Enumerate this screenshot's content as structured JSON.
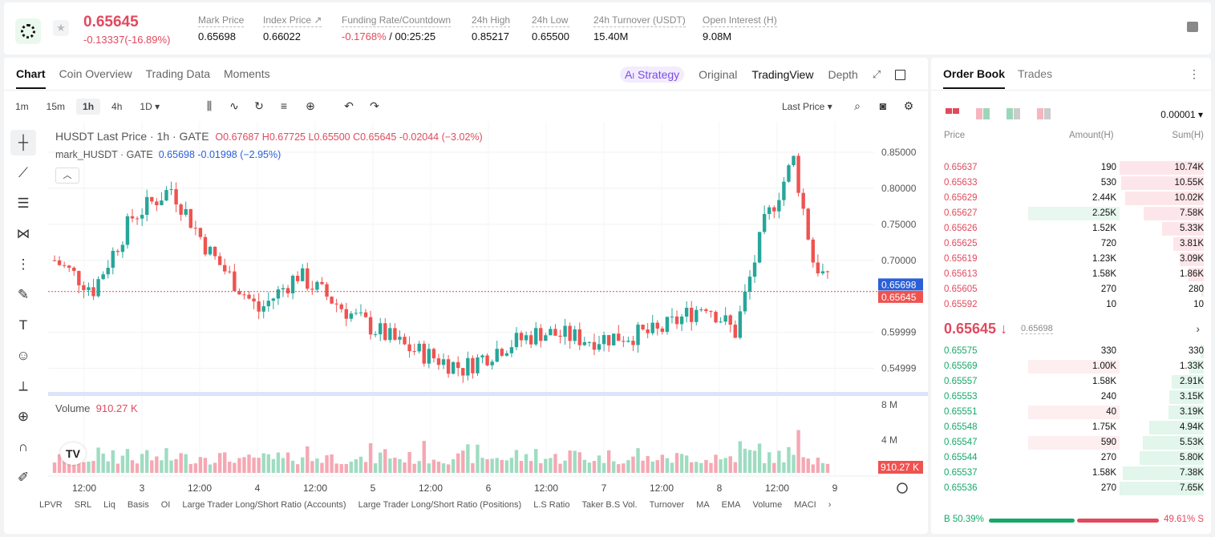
{
  "header": {
    "price": "0.65645",
    "change": "-0.13337(-16.89%)",
    "stats": [
      {
        "label": "Mark Price",
        "value": "0.65698"
      },
      {
        "label": "Index Price ↗",
        "value": "0.66022"
      },
      {
        "label": "Funding Rate/Countdown",
        "value_neg": "-0.1768%",
        "value": " / 00:25:25"
      },
      {
        "label": "24h High",
        "value": "0.85217"
      },
      {
        "label": "24h Low",
        "value": "0.65500"
      },
      {
        "label": "24h Turnover (USDT)",
        "value": "15.40M"
      },
      {
        "label": "Open Interest (H)",
        "value": "9.08M"
      }
    ]
  },
  "chart_tabs": [
    "Chart",
    "Coin Overview",
    "Trading Data",
    "Moments"
  ],
  "view_tabs": {
    "strategy": "Strategy",
    "original": "Original",
    "tradingview": "TradingView",
    "depth": "Depth"
  },
  "timeframes": [
    "1m",
    "15m",
    "1h",
    "4h",
    "1D ▾"
  ],
  "selected_timeframe": "1h",
  "price_type": "Last Price ▾",
  "legend": {
    "main": "HUSDT Last Price · 1h · GATE",
    "ohlc": "O0.67687  H0.67725  L0.65500  C0.65645  -0.02044 (−3.02%)",
    "mark_label": "mark_HUSDT · GATE",
    "mark_values": "0.65698  -0.01998 (−2.95%)"
  },
  "volume_label": "Volume",
  "volume_value": "910.27 K",
  "bottom_indicators": [
    "LPVR",
    "SRL",
    "Liq",
    "Basis",
    "OI",
    "Large Trader Long/Short Ratio (Accounts)",
    "Large Trader Long/Short Ratio (Positions)",
    "L.S Ratio",
    "Taker B.S Vol.",
    "Turnover",
    "MA",
    "EMA",
    "Volume",
    "MACI"
  ],
  "chart_data": {
    "type": "candlestick",
    "price_axis_ticks": [
      "0.85000",
      "0.80000",
      "0.75000",
      "0.70000",
      "0.59999",
      "0.54999"
    ],
    "volume_axis_ticks": [
      "8 M",
      "4 M"
    ],
    "x_tick_labels": [
      "12:00",
      "3",
      "12:00",
      "4",
      "12:00",
      "5",
      "12:00",
      "6",
      "12:00",
      "7",
      "12:00",
      "8",
      "12:00",
      "9"
    ],
    "mark_price_tag": "0.65698",
    "last_price_tag": "0.65645",
    "volume_tag": "910.27 K",
    "ylim": [
      0.525,
      0.87
    ],
    "colors": {
      "up": "#26a69a",
      "down": "#ef5350"
    }
  },
  "orderbook": {
    "tabs": [
      "Order Book",
      "Trades"
    ],
    "precision": "0.00001 ▾",
    "headers": {
      "price": "Price",
      "amount": "Amount(H)",
      "sum": "Sum(H)"
    },
    "asks": [
      {
        "price": "0.65637",
        "amount": "190",
        "sum": "10.74K",
        "depth": 1.0,
        "amt": 0.0
      },
      {
        "price": "0.65633",
        "amount": "530",
        "sum": "10.55K",
        "depth": 0.98,
        "amt": 0.0
      },
      {
        "price": "0.65629",
        "amount": "2.44K",
        "sum": "10.02K",
        "depth": 0.93,
        "amt": 0.0
      },
      {
        "price": "0.65627",
        "amount": "2.25K",
        "sum": "7.58K",
        "depth": 0.71,
        "amt": 0.95
      },
      {
        "price": "0.65626",
        "amount": "1.52K",
        "sum": "5.33K",
        "depth": 0.5,
        "amt": 0.0
      },
      {
        "price": "0.65625",
        "amount": "720",
        "sum": "3.81K",
        "depth": 0.36,
        "amt": 0.0
      },
      {
        "price": "0.65619",
        "amount": "1.23K",
        "sum": "3.09K",
        "depth": 0.29,
        "amt": 0.0
      },
      {
        "price": "0.65613",
        "amount": "1.58K",
        "sum": "1.86K",
        "depth": 0.18,
        "amt": 0.0
      },
      {
        "price": "0.65605",
        "amount": "270",
        "sum": "280",
        "depth": 0.03,
        "amt": 0.0
      },
      {
        "price": "0.65592",
        "amount": "10",
        "sum": "10",
        "depth": 0.0,
        "amt": 0.0
      }
    ],
    "mid_price": "0.65645 ↓",
    "mid_mark": "0.65698",
    "bids": [
      {
        "price": "0.65575",
        "amount": "330",
        "sum": "330",
        "depth": 0.04,
        "amt": 0.0
      },
      {
        "price": "0.65569",
        "amount": "1.00K",
        "sum": "1.33K",
        "depth": 0.17,
        "amt": 0.95
      },
      {
        "price": "0.65557",
        "amount": "1.58K",
        "sum": "2.91K",
        "depth": 0.38,
        "amt": 0.0
      },
      {
        "price": "0.65553",
        "amount": "240",
        "sum": "3.15K",
        "depth": 0.41,
        "amt": 0.0
      },
      {
        "price": "0.65551",
        "amount": "40",
        "sum": "3.19K",
        "depth": 0.42,
        "amt": 0.95
      },
      {
        "price": "0.65548",
        "amount": "1.75K",
        "sum": "4.94K",
        "depth": 0.65,
        "amt": 0.0
      },
      {
        "price": "0.65547",
        "amount": "590",
        "sum": "5.53K",
        "depth": 0.72,
        "amt": 0.95
      },
      {
        "price": "0.65544",
        "amount": "270",
        "sum": "5.80K",
        "depth": 0.76,
        "amt": 0.0
      },
      {
        "price": "0.65537",
        "amount": "1.58K",
        "sum": "7.38K",
        "depth": 0.96,
        "amt": 0.0
      },
      {
        "price": "0.65536",
        "amount": "270",
        "sum": "7.65K",
        "depth": 1.0,
        "amt": 0.0
      }
    ],
    "buy_label": "B 50.39%",
    "sell_label": "49.61% S",
    "buy_ratio": 0.5039
  }
}
